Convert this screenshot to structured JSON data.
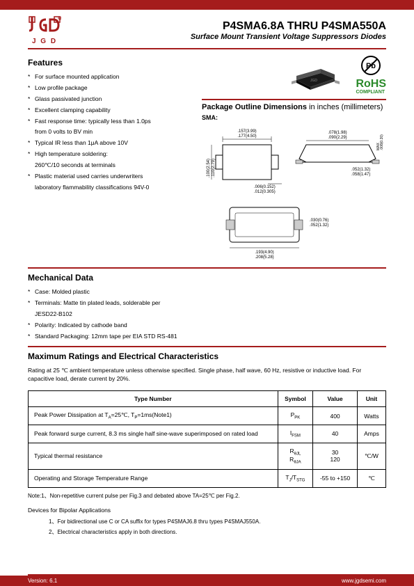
{
  "header": {
    "logo_text": "J G D",
    "title_main": "P4SMA6.8A THRU P4SMA550A",
    "title_sub": "Surface Mount Transient Voltage Suppressors Diodes"
  },
  "features": {
    "title": "Features",
    "items": [
      "For surface mounted application",
      "Low profile package",
      "Glass passivated junction",
      "Excellent clamping capability",
      "Fast response time: typically less than 1.0ps",
      "from 0 volts to BV min",
      "Typical IR less than 1μA above 10V",
      "High temperature soldering:",
      "260℃/10 seconds at terminals",
      "Plastic material used carries underwriters",
      "laboratory flammability classifications 94V-0"
    ],
    "indents": [
      5,
      8,
      10
    ]
  },
  "compliance": {
    "rohs": "RoHS",
    "rohs_sub": "COMPLIANT"
  },
  "package": {
    "title_bold": "Package Outline Dimensions",
    "title_light": " in inches (millimeters)",
    "sma_label": "SMA:",
    "dims": {
      "top_w1": ".157(3.99)",
      "top_w2": ".177(4.50)",
      "side_h1": ".078(1.98)",
      "side_h2": ".090(2.29)",
      "left_h1": ".100(2.54)",
      "left_h2": ".110(2.79)",
      "lead1": ".006(0.152)",
      "lead2": ".012(0.305)",
      "right1": ".052(1.32)",
      "right2": ".058(1.47)",
      "max1": ".008(0.20)",
      "max2": "MAX",
      "bot_lead1": ".030(0.76)",
      "bot_lead2": ".052(1.32)",
      "bot_w1": ".193(4.90)",
      "bot_w2": ".208(5.28)"
    }
  },
  "mechanical": {
    "title": "Mechanical Data",
    "items": [
      "Case: Molded plastic",
      "Terminals: Matte tin plated leads, solderable per",
      "JESD22-B102",
      "Polarity: Indicated by cathode band",
      "Standard Packaging: 12mm tape per EIA STD RS-481"
    ],
    "indents": [
      2
    ]
  },
  "ratings": {
    "title": "Maximum Ratings and Electrical Characteristics",
    "intro": "Rating at 25 ℃ ambient temperature unless otherwise specified. Single phase, half wave, 60 Hz, resistive or inductive load. For capacitive load, derate current by 20%.",
    "headers": [
      "Type Number",
      "Symbol",
      "Value",
      "Unit"
    ],
    "rows": [
      {
        "type": "Peak Power Dissipation at TA=25℃, TP=1ms(Note1)",
        "symbol": "PPK",
        "value": "400",
        "unit": "Watts"
      },
      {
        "type": "Peak forward surge current, 8.3 ms single half sine-wave superimposed on rated load",
        "symbol": "IFSM",
        "value": "40",
        "unit": "Amps"
      },
      {
        "type": "Typical thermal resistance",
        "symbol": "RθJL\nRθJA",
        "value": "30\n120",
        "unit": "℃/W"
      },
      {
        "type": "Operating and Storage Temperature Range",
        "symbol": "TJ/TSTG",
        "value": "-55 to +150",
        "unit": "℃"
      }
    ]
  },
  "notes": {
    "note1": "Note:1、Non-repetitive current pulse per Fig.3 and debated above TA=25℃ per Fig.2.",
    "devices_title": "Devices for Bipolar Applications",
    "device_notes": [
      "1、For bidirectional use C or CA suffix for types P4SMAJ6.8 thru types P4SMAJ550A.",
      "2、Electrical characteristics apply in both directions."
    ]
  },
  "footer": {
    "version": "Version: 6.1",
    "url": "www.jgdsemi.com"
  },
  "colors": {
    "brand_red": "#a51c1c",
    "rohs_green": "#2a8a2a"
  }
}
